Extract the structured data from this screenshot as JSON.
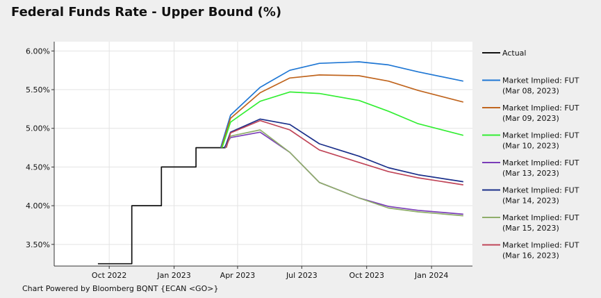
{
  "title": "Federal Funds Rate - Upper Bound (%)",
  "footer": "Chart Powered by Bloomberg BQNT {ECAN <GO>}",
  "colors": {
    "background": "#efefef",
    "plot_background": "#ffffff",
    "grid": "#e3e3e3",
    "axis": "#333333"
  },
  "chart_data": {
    "type": "line",
    "title": "Federal Funds Rate - Upper Bound (%)",
    "xlabel": "",
    "ylabel": "",
    "xlim": [
      "2022-07-15",
      "2024-02-28"
    ],
    "ylim": [
      3.22,
      6.12
    ],
    "grid": true,
    "legend_position": "right",
    "y_ticks": [
      {
        "value": 3.5,
        "label": "3.50%"
      },
      {
        "value": 4.0,
        "label": "4.00%"
      },
      {
        "value": 4.5,
        "label": "4.50%"
      },
      {
        "value": 5.0,
        "label": "5.00%"
      },
      {
        "value": 5.5,
        "label": "5.50%"
      },
      {
        "value": 6.0,
        "label": "6.00%"
      }
    ],
    "x_ticks": [
      {
        "date": "2022-10-01",
        "label": "Oct 2022"
      },
      {
        "date": "2023-01-01",
        "label": "Jan 2023"
      },
      {
        "date": "2023-04-01",
        "label": "Apr 2023"
      },
      {
        "date": "2023-07-01",
        "label": "Jul 2023"
      },
      {
        "date": "2023-10-01",
        "label": "Oct 2023"
      },
      {
        "date": "2024-01-01",
        "label": "Jan 2024"
      }
    ],
    "series": [
      {
        "name": "Actual",
        "legend": [
          "Actual"
        ],
        "color": "#111111",
        "step": true,
        "points": [
          [
            "2022-09-15",
            3.25
          ],
          [
            "2022-11-02",
            4.0
          ],
          [
            "2022-12-14",
            4.5
          ],
          [
            "2023-02-01",
            4.75
          ],
          [
            "2023-03-15",
            4.75
          ]
        ]
      },
      {
        "name": "Market Implied: FUT (Mar 08, 2023)",
        "legend": [
          "Market Implied: FUT",
          "(Mar 08, 2023)"
        ],
        "color": "#1f77d4",
        "points": [
          [
            "2023-03-08",
            4.75
          ],
          [
            "2023-03-22",
            5.17
          ],
          [
            "2023-05-03",
            5.53
          ],
          [
            "2023-06-14",
            5.75
          ],
          [
            "2023-07-26",
            5.84
          ],
          [
            "2023-09-20",
            5.86
          ],
          [
            "2023-11-01",
            5.82
          ],
          [
            "2023-12-13",
            5.73
          ],
          [
            "2024-02-15",
            5.61
          ]
        ]
      },
      {
        "name": "Market Implied: FUT (Mar 09, 2023)",
        "legend": [
          "Market Implied: FUT",
          "(Mar 09, 2023)"
        ],
        "color": "#c0651e",
        "points": [
          [
            "2023-03-09",
            4.75
          ],
          [
            "2023-03-22",
            5.13
          ],
          [
            "2023-05-03",
            5.46
          ],
          [
            "2023-06-14",
            5.65
          ],
          [
            "2023-07-26",
            5.69
          ],
          [
            "2023-09-20",
            5.68
          ],
          [
            "2023-11-01",
            5.61
          ],
          [
            "2023-12-13",
            5.49
          ],
          [
            "2024-02-15",
            5.34
          ]
        ]
      },
      {
        "name": "Market Implied: FUT (Mar 10, 2023)",
        "legend": [
          "Market Implied: FUT",
          "(Mar 10, 2023)"
        ],
        "color": "#33ee33",
        "points": [
          [
            "2023-03-10",
            4.75
          ],
          [
            "2023-03-22",
            5.08
          ],
          [
            "2023-05-03",
            5.35
          ],
          [
            "2023-06-14",
            5.47
          ],
          [
            "2023-07-26",
            5.45
          ],
          [
            "2023-09-20",
            5.36
          ],
          [
            "2023-11-01",
            5.22
          ],
          [
            "2023-12-13",
            5.06
          ],
          [
            "2024-02-15",
            4.91
          ]
        ]
      },
      {
        "name": "Market Implied: FUT (Mar 13, 2023)",
        "legend": [
          "Market Implied: FUT",
          "(Mar 13, 2023)"
        ],
        "color": "#7a3db8",
        "points": [
          [
            "2023-03-13",
            4.75
          ],
          [
            "2023-03-22",
            4.88
          ],
          [
            "2023-05-03",
            4.95
          ],
          [
            "2023-06-14",
            4.69
          ],
          [
            "2023-07-26",
            4.3
          ],
          [
            "2023-09-20",
            4.1
          ],
          [
            "2023-11-01",
            3.99
          ],
          [
            "2023-12-13",
            3.94
          ],
          [
            "2024-02-15",
            3.89
          ]
        ]
      },
      {
        "name": "Market Implied: FUT (Mar 14, 2023)",
        "legend": [
          "Market Implied: FUT",
          "(Mar 14, 2023)"
        ],
        "color": "#1a2f8a",
        "points": [
          [
            "2023-03-14",
            4.75
          ],
          [
            "2023-03-22",
            4.95
          ],
          [
            "2023-05-03",
            5.12
          ],
          [
            "2023-06-14",
            5.05
          ],
          [
            "2023-07-26",
            4.8
          ],
          [
            "2023-09-20",
            4.64
          ],
          [
            "2023-11-01",
            4.49
          ],
          [
            "2023-12-13",
            4.4
          ],
          [
            "2024-02-15",
            4.31
          ]
        ]
      },
      {
        "name": "Market Implied: FUT (Mar 15, 2023)",
        "legend": [
          "Market Implied: FUT",
          "(Mar 15, 2023)"
        ],
        "color": "#8fae6a",
        "points": [
          [
            "2023-03-15",
            4.75
          ],
          [
            "2023-03-22",
            4.9
          ],
          [
            "2023-05-03",
            4.98
          ],
          [
            "2023-06-14",
            4.69
          ],
          [
            "2023-07-26",
            4.3
          ],
          [
            "2023-09-20",
            4.1
          ],
          [
            "2023-11-01",
            3.97
          ],
          [
            "2023-12-13",
            3.92
          ],
          [
            "2024-02-15",
            3.87
          ]
        ]
      },
      {
        "name": "Market Implied: FUT (Mar 16, 2023)",
        "legend": [
          "Market Implied: FUT",
          "(Mar 16, 2023)"
        ],
        "color": "#c04558",
        "points": [
          [
            "2023-03-16",
            4.75
          ],
          [
            "2023-03-22",
            4.94
          ],
          [
            "2023-05-03",
            5.1
          ],
          [
            "2023-06-14",
            4.98
          ],
          [
            "2023-07-26",
            4.72
          ],
          [
            "2023-09-20",
            4.56
          ],
          [
            "2023-11-01",
            4.44
          ],
          [
            "2023-12-13",
            4.36
          ],
          [
            "2024-02-15",
            4.27
          ]
        ]
      }
    ]
  }
}
